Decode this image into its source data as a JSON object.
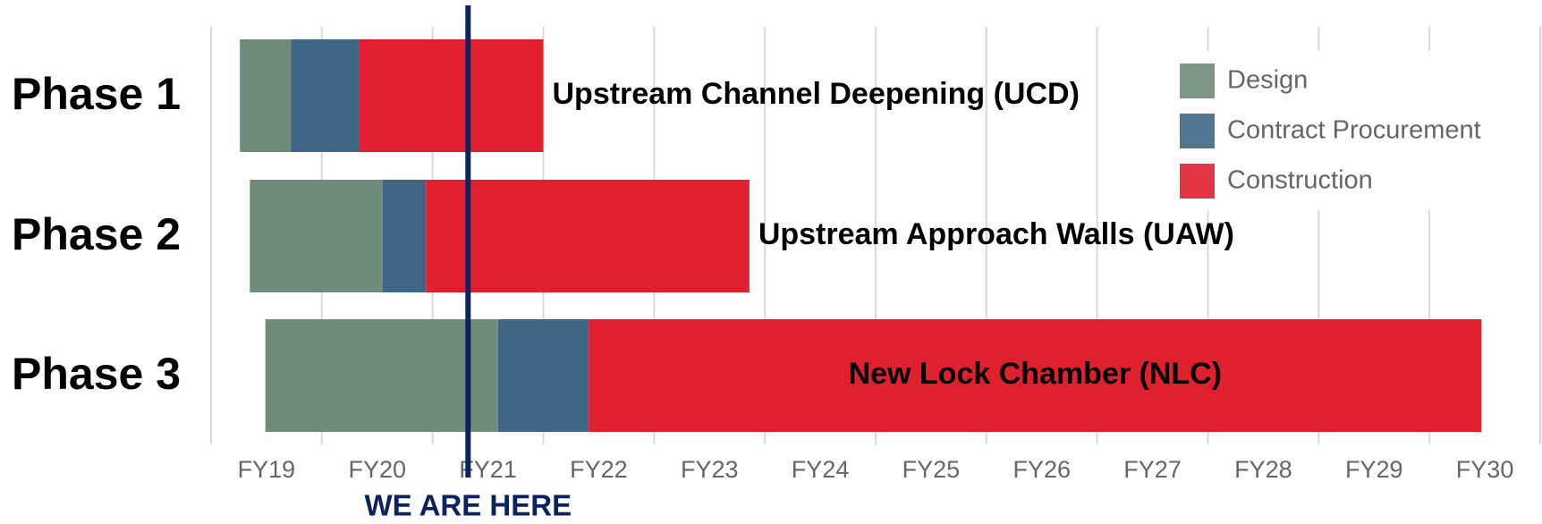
{
  "chart_data": {
    "type": "gantt",
    "categories": [
      "Phase 1",
      "Phase 2",
      "Phase 3"
    ],
    "bar_labels": [
      "Upstream Channel Deepening (UCD)",
      "Upstream Approach Walls (UAW)",
      "New Lock Chamber (NLC)"
    ],
    "starts": [
      18.76,
      18.85,
      18.99
    ],
    "series": [
      {
        "name": "Design",
        "color": "#6f8b79",
        "values": [
          0.46,
          1.2,
          2.1
        ]
      },
      {
        "name": "Contract Procurement",
        "color": "#3f6685",
        "values": [
          0.62,
          0.39,
          0.82
        ]
      },
      {
        "name": "Construction",
        "color": "#e01f2f",
        "values": [
          1.66,
          2.92,
          8.06
        ]
      }
    ],
    "xlim": [
      18.5,
      30.5
    ],
    "xticks": [
      {
        "value": 19,
        "label": "FY19"
      },
      {
        "value": 20,
        "label": "FY20"
      },
      {
        "value": 21,
        "label": "FY21"
      },
      {
        "value": 22,
        "label": "FY22"
      },
      {
        "value": 23,
        "label": "FY23"
      },
      {
        "value": 24,
        "label": "FY24"
      },
      {
        "value": 25,
        "label": "FY25"
      },
      {
        "value": 26,
        "label": "FY26"
      },
      {
        "value": 27,
        "label": "FY27"
      },
      {
        "value": 28,
        "label": "FY28"
      },
      {
        "value": 29,
        "label": "FY29"
      },
      {
        "value": 30,
        "label": "FY30"
      }
    ],
    "grid": true,
    "legend": "upper right",
    "marker": {
      "value": 20.82,
      "label": "WE ARE HERE",
      "color": "#0b2160"
    }
  }
}
